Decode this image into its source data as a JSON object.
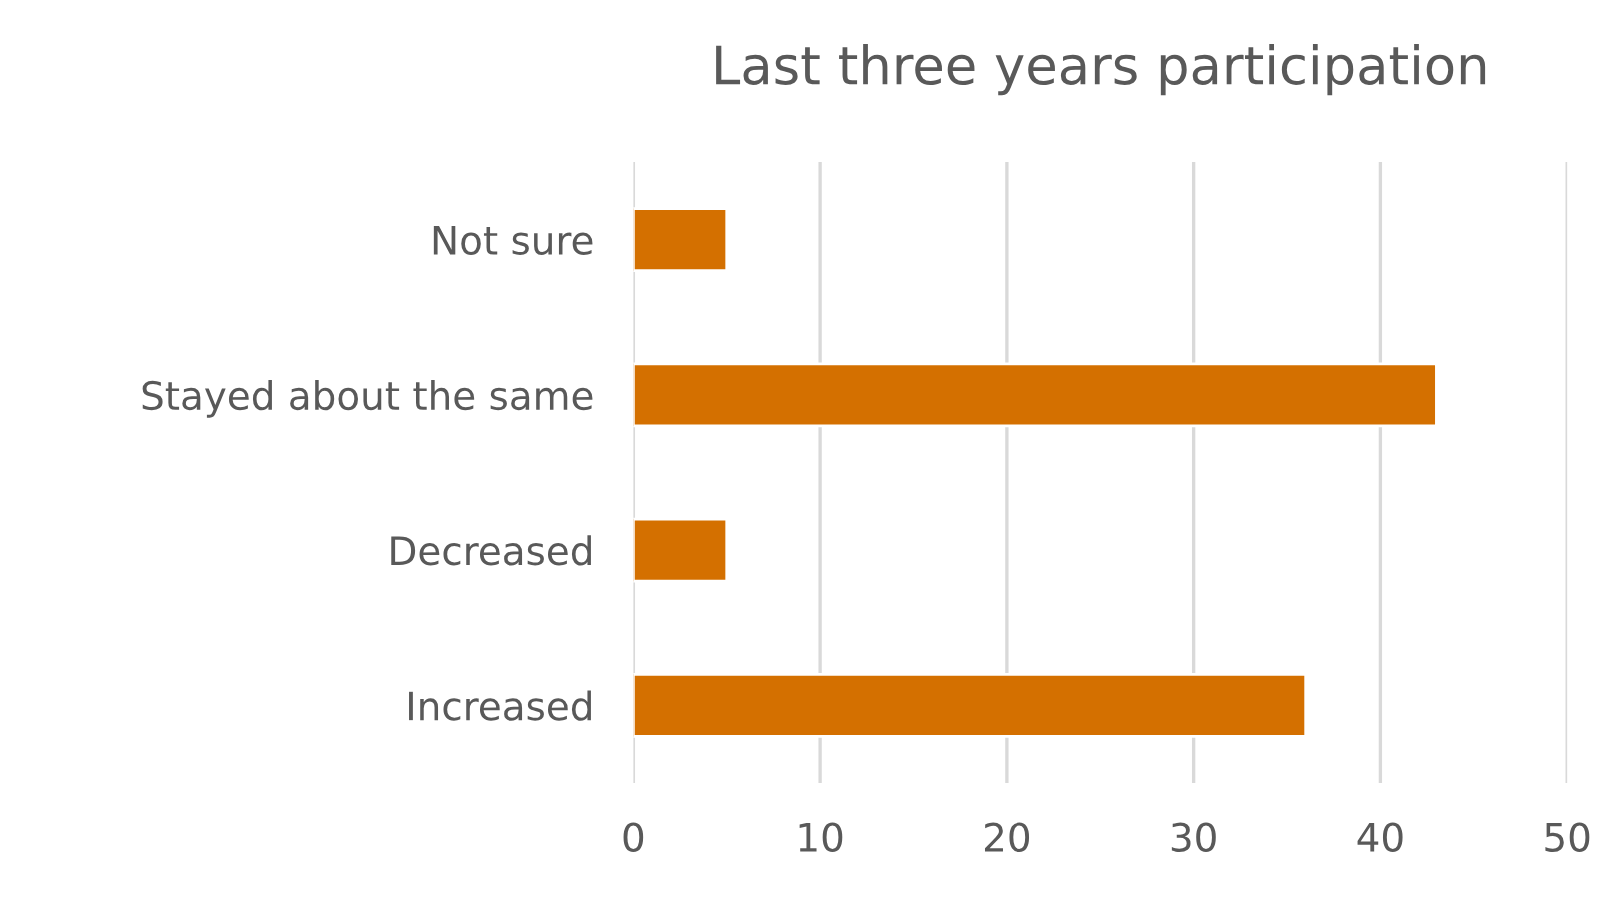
{
  "chart_data": {
    "type": "bar",
    "orientation": "horizontal",
    "title": "Last three years participation",
    "categories": [
      "Not sure",
      "Stayed about the same",
      "Decreased",
      "Increased"
    ],
    "values": [
      5,
      43,
      5,
      36
    ],
    "color": "#d47000",
    "xlim": [
      0,
      50
    ],
    "xticks": [
      0,
      10,
      20,
      30,
      40,
      50
    ],
    "grid": "x"
  }
}
